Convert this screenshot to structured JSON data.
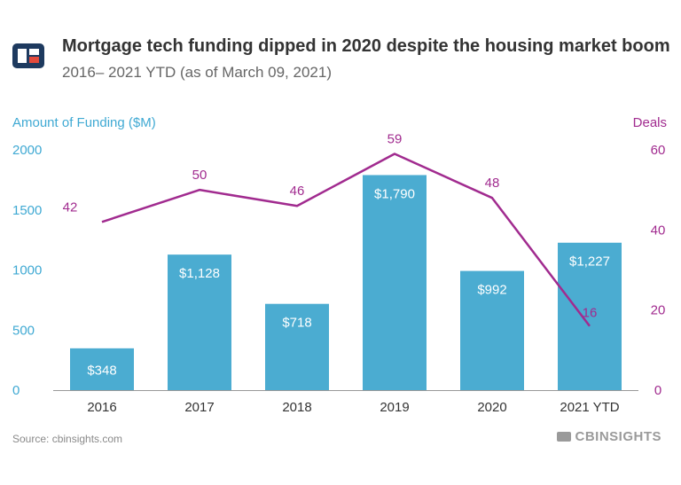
{
  "header": {
    "title": "Mortgage tech funding dipped in 2020 despite the housing market boom",
    "subtitle": "2016– 2021 YTD (as of March 09, 2021)"
  },
  "footer": {
    "source": "Source: cbinsights.com",
    "brand": "CBINSIGHTS"
  },
  "colors": {
    "bars": "#4bacd1",
    "line": "#a12b8f",
    "axis_left": "#3fa9d3",
    "axis_right": "#a12b8f",
    "text": "#333333",
    "logo_navy": "#1e3a5f",
    "logo_red": "#e34a3c"
  },
  "chart_data": {
    "type": "bar",
    "categories": [
      "2016",
      "2017",
      "2018",
      "2019",
      "2020",
      "2021 YTD"
    ],
    "series": [
      {
        "type": "bar",
        "axis": "left",
        "values": [
          348,
          1128,
          718,
          1790,
          992,
          1227
        ],
        "labels": [
          "$348",
          "$1,128",
          "$718",
          "$1,790",
          "$992",
          "$1,227"
        ]
      },
      {
        "type": "line",
        "axis": "right",
        "values": [
          42,
          50,
          46,
          59,
          48,
          16
        ],
        "labels": [
          "42",
          "50",
          "46",
          "59",
          "48",
          "16"
        ]
      }
    ],
    "y_left": {
      "label": "Amount of Funding ($M)",
      "range": [
        0,
        2000
      ],
      "ticks": [
        0,
        500,
        1000,
        1500,
        2000
      ],
      "tick_labels": [
        "0",
        "500",
        "1000",
        "1500",
        "2000"
      ]
    },
    "y_right": {
      "label": "Deals",
      "range": [
        0,
        60
      ],
      "ticks": [
        0,
        20,
        40,
        60
      ],
      "tick_labels": [
        "0",
        "20",
        "40",
        "60"
      ]
    },
    "grid": false,
    "legend": "none"
  }
}
